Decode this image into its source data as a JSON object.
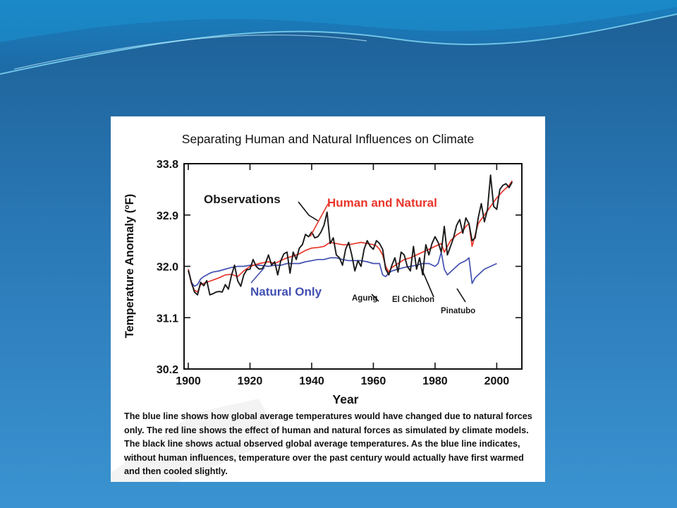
{
  "colors": {
    "observations": "#1a1a1a",
    "human_and_natural": "#e8352a",
    "natural_only": "#4250b0",
    "background_top": "#1c5f95",
    "background_bottom": "#3a93d0"
  },
  "chart_data": {
    "type": "line",
    "title": "Separating Human and Natural Influences on Climate",
    "xlabel": "Year",
    "ylabel": "Temperature Anomaly (°F)",
    "ylabel_pre": "Temperature Anomaly (",
    "ylabel_unit_sup": "o",
    "ylabel_post": "F)",
    "xlim": [
      1900,
      2007
    ],
    "ylim": [
      30.2,
      33.8
    ],
    "xticks": [
      1900,
      1920,
      1940,
      1960,
      1980,
      2000
    ],
    "yticks": [
      30.2,
      31.1,
      32.0,
      32.9,
      33.8
    ],
    "ytick_labels": [
      "30.2",
      "31.1",
      "32.0",
      "32.9",
      "33.8"
    ],
    "grid": false,
    "series": [
      {
        "name": "Observations",
        "color": "#1a1a1a",
        "x": [
          1900,
          1901,
          1902,
          1903,
          1904,
          1905,
          1906,
          1907,
          1908,
          1909,
          1910,
          1911,
          1912,
          1913,
          1914,
          1915,
          1916,
          1917,
          1918,
          1919,
          1920,
          1921,
          1922,
          1923,
          1924,
          1925,
          1926,
          1927,
          1928,
          1929,
          1930,
          1931,
          1932,
          1933,
          1934,
          1935,
          1936,
          1937,
          1938,
          1939,
          1940,
          1941,
          1942,
          1943,
          1944,
          1945,
          1946,
          1947,
          1948,
          1949,
          1950,
          1951,
          1952,
          1953,
          1954,
          1955,
          1956,
          1957,
          1958,
          1959,
          1960,
          1961,
          1962,
          1963,
          1964,
          1965,
          1966,
          1967,
          1968,
          1969,
          1970,
          1971,
          1972,
          1973,
          1974,
          1975,
          1976,
          1977,
          1978,
          1979,
          1980,
          1981,
          1982,
          1983,
          1984,
          1985,
          1986,
          1987,
          1988,
          1989,
          1990,
          1991,
          1992,
          1993,
          1994,
          1995,
          1996,
          1997,
          1998,
          1999,
          2000,
          2001,
          2002,
          2003,
          2004,
          2005
        ],
        "values": [
          31.93,
          31.72,
          31.55,
          31.5,
          31.72,
          31.66,
          31.75,
          31.5,
          31.52,
          31.55,
          31.56,
          31.55,
          31.68,
          31.6,
          31.84,
          32.02,
          31.75,
          31.65,
          31.85,
          31.94,
          31.95,
          32.12,
          32.0,
          31.95,
          31.96,
          32.05,
          32.2,
          32.02,
          32.08,
          31.85,
          32.1,
          32.22,
          32.25,
          31.88,
          32.25,
          32.12,
          32.32,
          32.38,
          32.56,
          32.52,
          32.6,
          32.5,
          32.52,
          32.6,
          32.72,
          32.95,
          32.4,
          32.5,
          32.2,
          32.15,
          32.02,
          32.3,
          32.42,
          32.2,
          31.92,
          32.1,
          32.0,
          32.3,
          32.45,
          32.35,
          32.3,
          32.45,
          32.4,
          32.3,
          31.95,
          31.85,
          32.02,
          32.15,
          31.9,
          32.25,
          32.2,
          32.0,
          31.92,
          32.35,
          31.95,
          32.15,
          31.85,
          32.38,
          32.2,
          32.4,
          32.52,
          32.42,
          32.25,
          32.7,
          32.2,
          32.35,
          32.5,
          32.72,
          32.82,
          32.58,
          32.85,
          32.75,
          32.45,
          32.5,
          32.85,
          33.1,
          32.78,
          33.0,
          33.6,
          33.05,
          33.0,
          33.35,
          33.42,
          33.45,
          33.38,
          33.48
        ]
      },
      {
        "name": "Human and Natural",
        "color": "#e8352a",
        "x": [
          1900,
          1901,
          1902,
          1903,
          1904,
          1905,
          1906,
          1907,
          1908,
          1910,
          1912,
          1914,
          1916,
          1918,
          1920,
          1923,
          1926,
          1928,
          1930,
          1932,
          1934,
          1936,
          1938,
          1940,
          1942,
          1944,
          1946,
          1948,
          1950,
          1952,
          1954,
          1956,
          1958,
          1960,
          1961,
          1962,
          1963,
          1964,
          1965,
          1966,
          1968,
          1970,
          1972,
          1974,
          1976,
          1978,
          1980,
          1982,
          1983,
          1985,
          1987,
          1989,
          1990,
          1991,
          1992,
          1993,
          1994,
          1996,
          1998,
          2000,
          2002,
          2004,
          2005
        ],
        "values": [
          31.95,
          31.7,
          31.58,
          31.55,
          31.68,
          31.7,
          31.72,
          31.74,
          31.76,
          31.8,
          31.85,
          31.86,
          31.82,
          31.92,
          32.0,
          32.05,
          32.08,
          32.05,
          32.1,
          32.15,
          32.18,
          32.22,
          32.28,
          32.32,
          32.33,
          32.35,
          32.42,
          32.4,
          32.38,
          32.38,
          32.4,
          32.42,
          32.4,
          32.38,
          32.36,
          32.3,
          32.2,
          32.0,
          31.9,
          31.98,
          32.05,
          32.12,
          32.15,
          32.2,
          32.25,
          32.3,
          32.35,
          32.4,
          32.25,
          32.45,
          32.55,
          32.62,
          32.7,
          32.75,
          32.35,
          32.55,
          32.75,
          32.9,
          33.05,
          33.2,
          33.32,
          33.42,
          33.5
        ]
      },
      {
        "name": "Natural Only",
        "color": "#4250b0",
        "x": [
          1900,
          1901,
          1902,
          1903,
          1904,
          1905,
          1906,
          1907,
          1908,
          1910,
          1912,
          1914,
          1916,
          1918,
          1920,
          1923,
          1926,
          1928,
          1930,
          1932,
          1934,
          1936,
          1938,
          1940,
          1942,
          1944,
          1946,
          1948,
          1950,
          1952,
          1954,
          1956,
          1958,
          1960,
          1962,
          1963,
          1964,
          1965,
          1966,
          1968,
          1970,
          1972,
          1974,
          1976,
          1978,
          1980,
          1981,
          1982,
          1983,
          1984,
          1986,
          1988,
          1990,
          1991,
          1992,
          1993,
          1994,
          1996,
          1998,
          2000
        ],
        "values": [
          31.95,
          31.72,
          31.65,
          31.68,
          31.78,
          31.82,
          31.85,
          31.88,
          31.9,
          31.92,
          31.95,
          31.98,
          32.0,
          32.0,
          32.02,
          32.02,
          32.0,
          32.02,
          32.02,
          32.05,
          32.05,
          32.05,
          32.08,
          32.1,
          32.12,
          32.12,
          32.15,
          32.15,
          32.12,
          32.1,
          32.1,
          32.1,
          32.08,
          32.05,
          32.05,
          31.85,
          31.82,
          31.88,
          31.92,
          31.95,
          31.98,
          32.0,
          32.02,
          32.05,
          32.05,
          32.0,
          32.05,
          32.25,
          31.95,
          31.85,
          31.95,
          32.05,
          32.1,
          32.15,
          31.7,
          31.8,
          31.85,
          31.95,
          32.0,
          32.05
        ]
      }
    ],
    "annotations": [
      {
        "text": "Observations",
        "color": "#1a1a1a",
        "x": 1945,
        "y": 32.95
      },
      {
        "text": "Human and Natural",
        "color": "#e8352a",
        "x": 1948,
        "y": 32.42
      },
      {
        "text": "Natural Only",
        "color": "#4250b0",
        "x": 1930,
        "y": 32.02
      },
      {
        "text": "Agung",
        "color": "#1a1a1a",
        "x": 1964,
        "y": 31.84
      },
      {
        "text": "El Chichon",
        "color": "#1a1a1a",
        "x": 1982,
        "y": 32.25
      },
      {
        "text": "Pinatubo",
        "color": "#1a1a1a",
        "x": 1991,
        "y": 31.7
      }
    ]
  },
  "caption": "The blue line shows how global average temperatures would have changed due to natural forces only. The red line shows the effect of human and natural forces as simulated by climate models. The black line shows actual observed global average temperatures. As the blue line indicates, without human influences, temperature over the past century would actually have first warmed and then cooled slightly."
}
